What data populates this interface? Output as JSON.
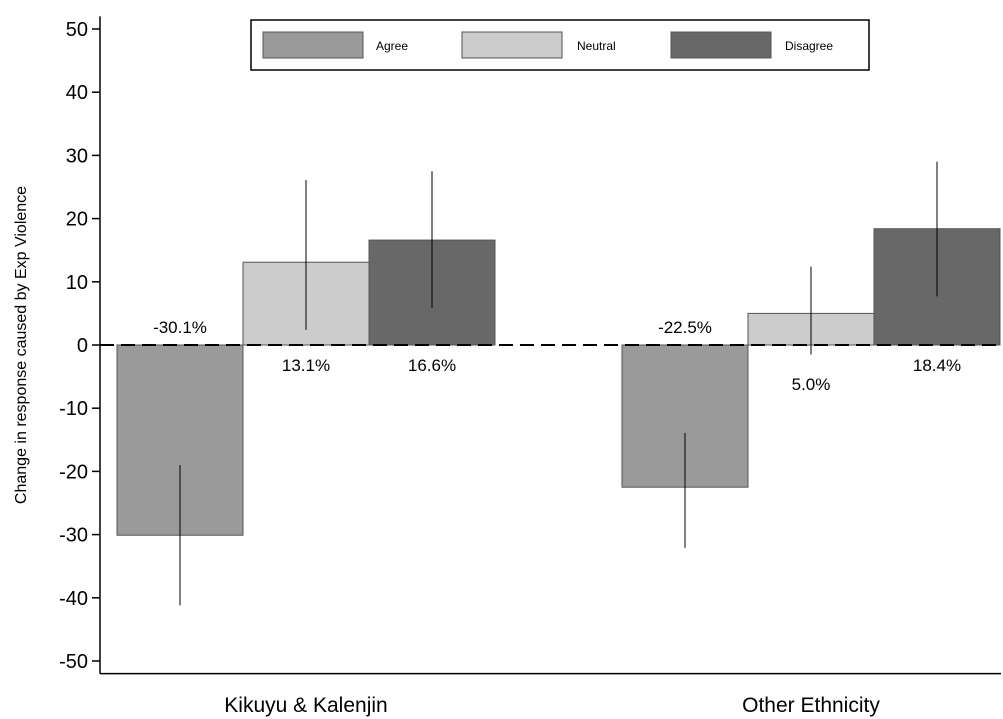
{
  "chart_data": {
    "type": "bar",
    "title": "",
    "xlabel": "",
    "ylabel": "Change in response caused by Exp Violence",
    "ylim": [
      -52,
      52
    ],
    "yticks": [
      50,
      40,
      30,
      20,
      10,
      0,
      -10,
      -20,
      -30,
      -40,
      -50
    ],
    "grid": false,
    "reference_line": {
      "y": 0,
      "style": "dashed"
    },
    "legend": {
      "placement": "top-center",
      "entries": [
        "Agree",
        "Neutral",
        "Disagree"
      ]
    },
    "categories": [
      "Kikuyu & Kalenjin",
      "Other Ethnicity"
    ],
    "series": [
      {
        "name": "Agree",
        "color": "#9a9a9a",
        "values": [
          -30.1,
          -22.5
        ],
        "ci_low": [
          -41.2,
          -32.1
        ],
        "ci_high": [
          -19.0,
          -13.9
        ],
        "labels": [
          "-30.1%",
          "-22.5%"
        ]
      },
      {
        "name": "Neutral",
        "color": "#cccccc",
        "values": [
          13.1,
          5.0
        ],
        "ci_low": [
          2.4,
          -1.5
        ],
        "ci_high": [
          26.1,
          12.4
        ],
        "labels": [
          "13.1%",
          "5.0%"
        ]
      },
      {
        "name": "Disagree",
        "color": "#686868",
        "values": [
          16.6,
          18.4
        ],
        "ci_low": [
          5.9,
          7.7
        ],
        "ci_high": [
          27.5,
          29.0
        ],
        "labels": [
          "16.6%",
          "18.4%"
        ]
      }
    ]
  }
}
